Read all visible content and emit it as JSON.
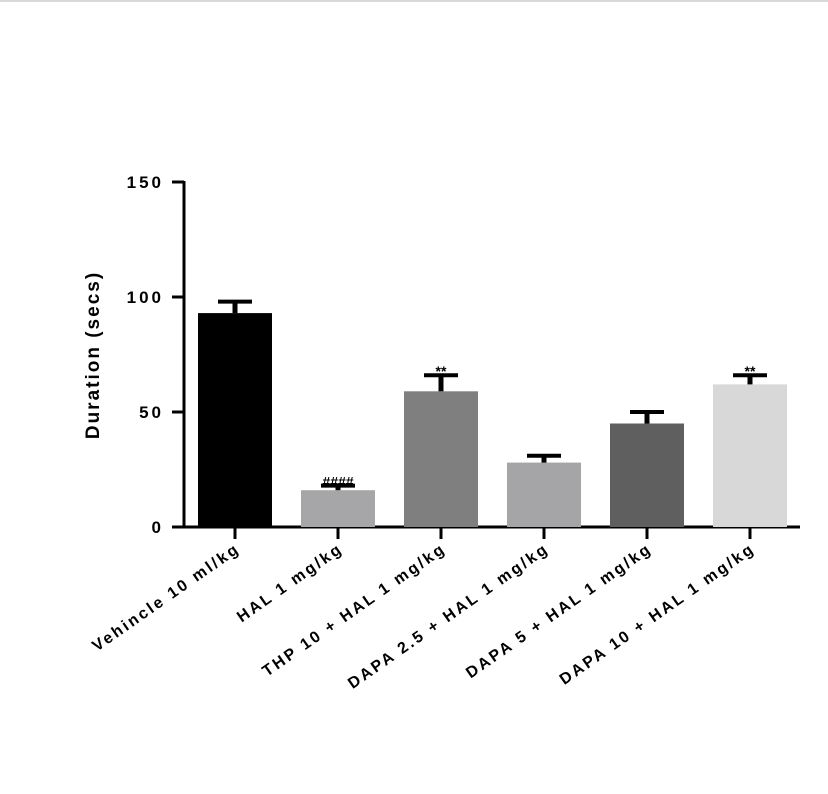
{
  "chart_data": {
    "type": "bar",
    "ylabel": "Duration (secs)",
    "ylim": [
      0,
      150
    ],
    "yticks": [
      "0",
      "50",
      "100",
      "150"
    ],
    "categories": [
      "Vehincle 10 ml/kg",
      "HAL 1 mg/kg",
      "THP 10 + HAL 1 mg/kg",
      "DAPA 2.5 + HAL 1 mg/kg",
      "DAPA 5 + HAL 1 mg/kg",
      "DAPA 10 + HAL 1 mg/kg"
    ],
    "values": [
      93,
      16,
      59,
      28,
      45,
      62
    ],
    "errors": [
      5,
      2,
      7,
      3,
      5,
      4
    ],
    "colors": [
      "#000000",
      "#a6a6a8",
      "#7f7f7f",
      "#a5a5a8",
      "#5f5f5f",
      "#d8d8d8"
    ],
    "annotations": [
      "",
      "####",
      "**",
      "",
      "",
      "**"
    ]
  }
}
